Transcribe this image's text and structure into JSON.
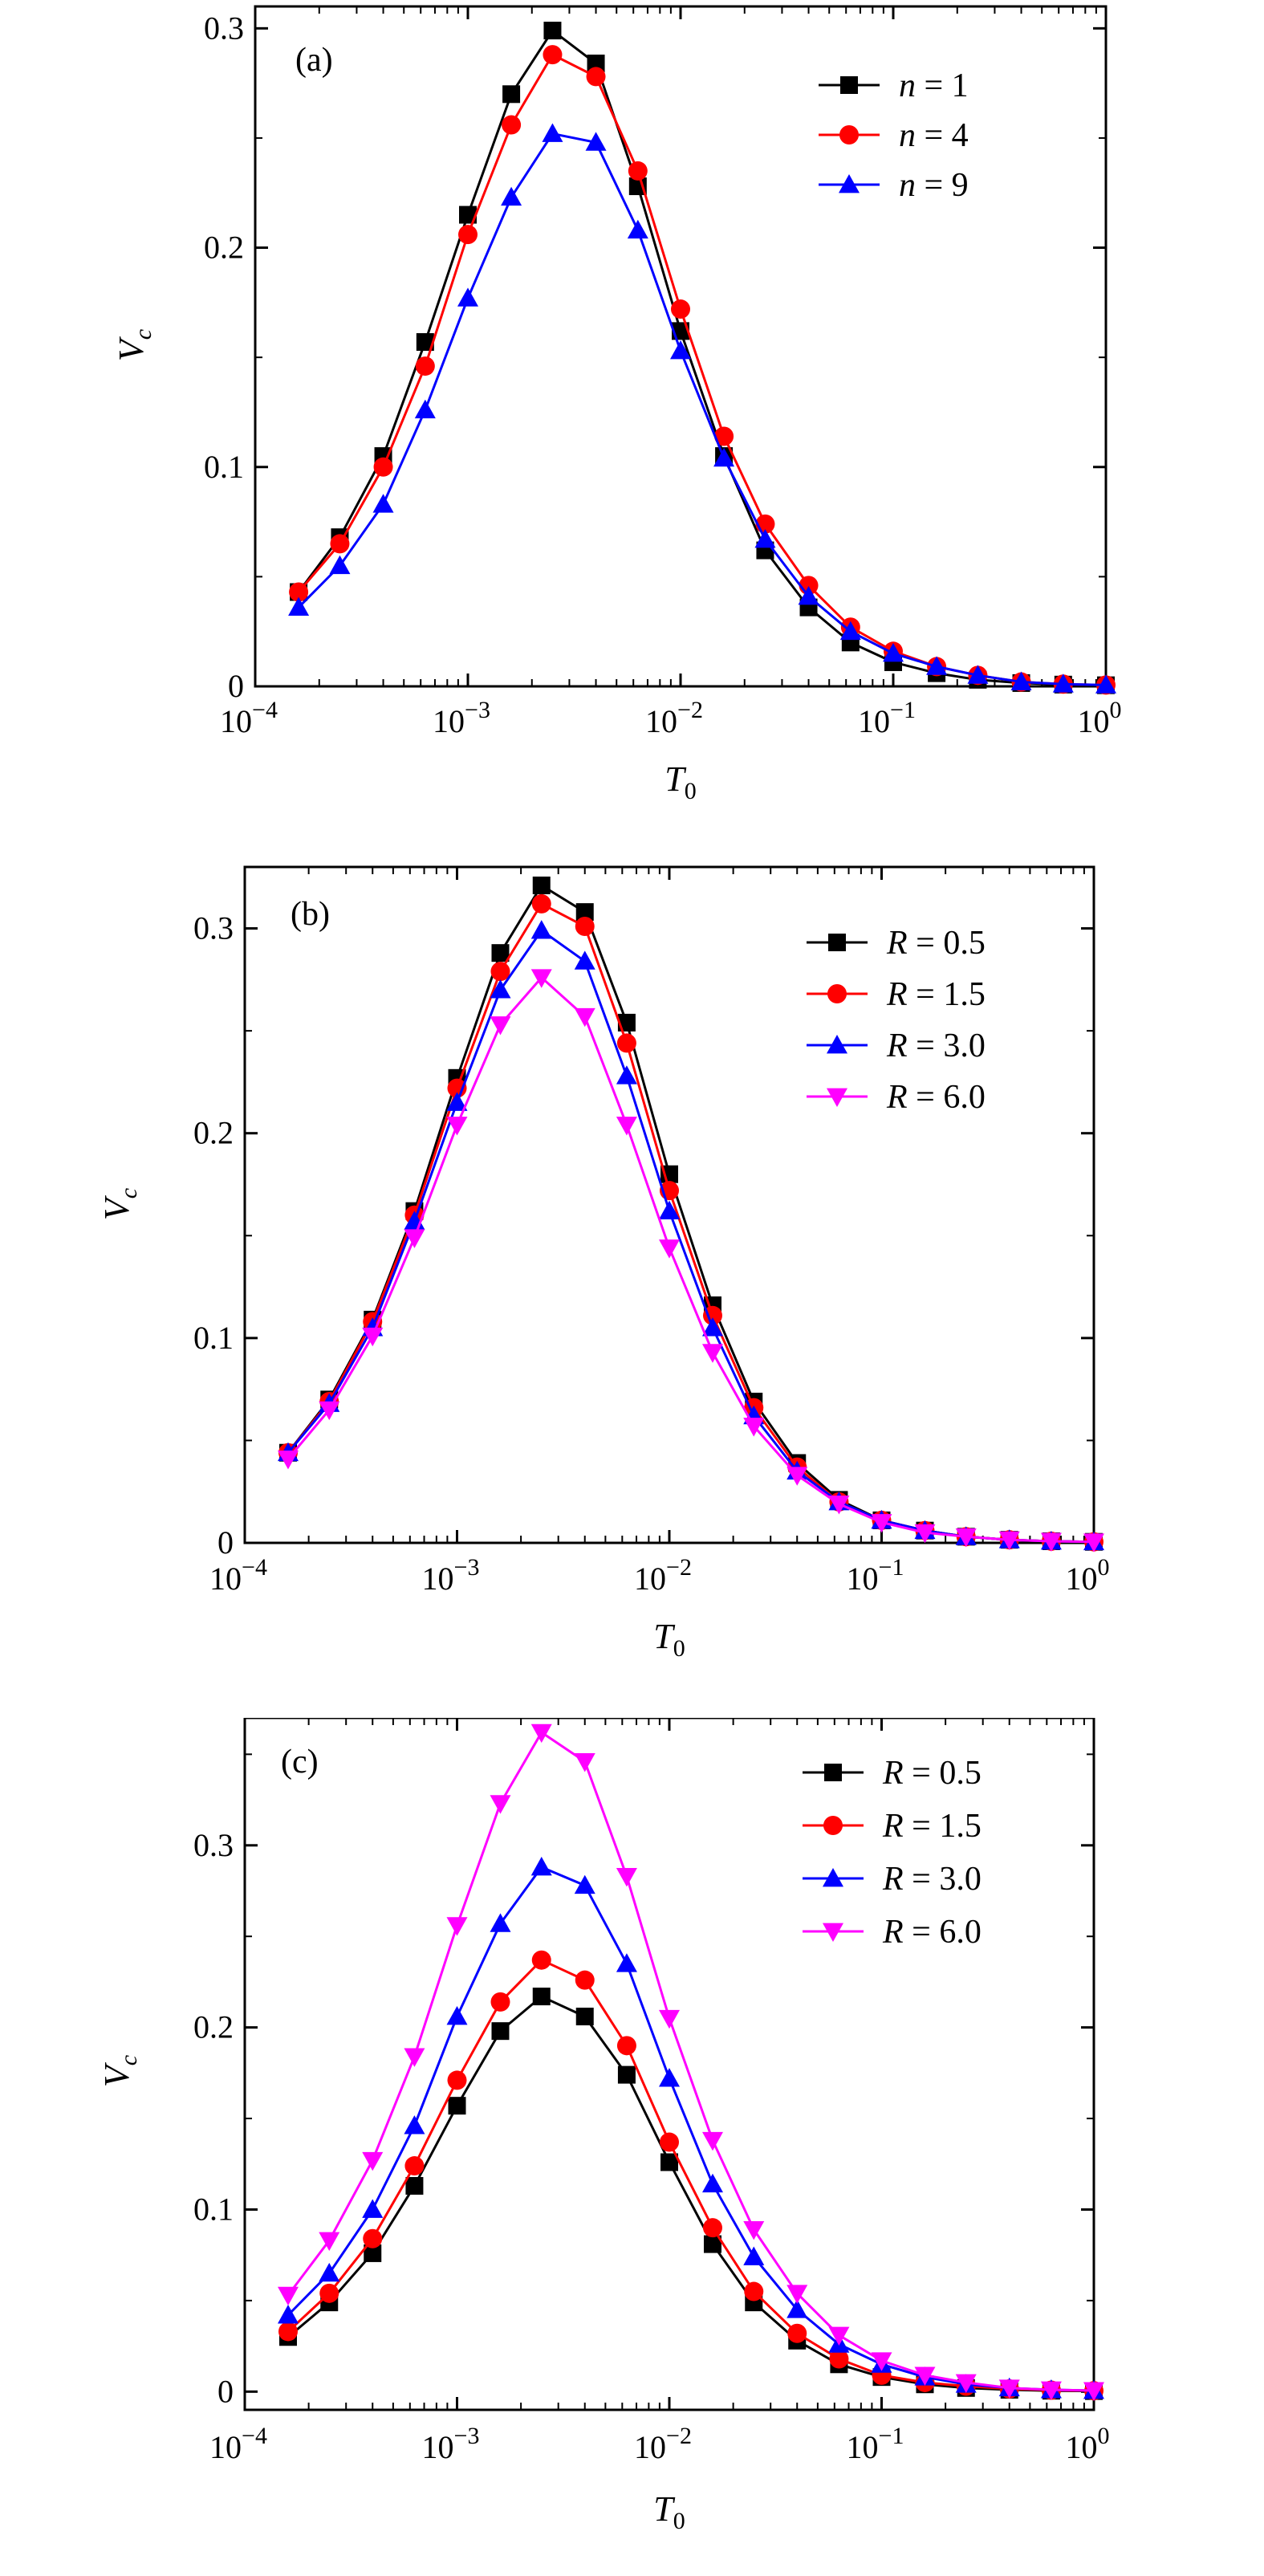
{
  "chart_data": [
    {
      "type": "line",
      "panel_label": "(a)",
      "xlabel": "T",
      "xlabel_sub": "0",
      "ylabel": "V",
      "ylabel_sub": "c",
      "xscale": "log",
      "xlim": [
        0.0001,
        1
      ],
      "ylim": [
        0,
        0.31
      ],
      "x_ticks": [
        0.0001,
        0.001,
        0.01,
        0.1,
        1
      ],
      "x_tick_labels": [
        {
          "base": "10",
          "exp": "−4"
        },
        {
          "base": "10",
          "exp": "−3"
        },
        {
          "base": "10",
          "exp": "−2"
        },
        {
          "base": "10",
          "exp": "−1"
        },
        {
          "base": "10",
          "exp": "0"
        }
      ],
      "y_ticks": [
        0,
        0.1,
        0.2,
        0.3
      ],
      "y_tick_labels": [
        "0",
        "0.1",
        "0.2",
        "0.3"
      ],
      "legend_position": "top-right",
      "x": [
        0.00016,
        0.00025,
        0.0004,
        0.00063,
        0.001,
        0.0016,
        0.0025,
        0.004,
        0.0063,
        0.01,
        0.016,
        0.025,
        0.04,
        0.063,
        0.1,
        0.16,
        0.25,
        0.4,
        0.63,
        1.0
      ],
      "series": [
        {
          "name": "n = 1",
          "legend_var": "n",
          "legend_val": "= 1",
          "color": "#000000",
          "marker": "square",
          "values": [
            0.043,
            0.068,
            0.105,
            0.157,
            0.215,
            0.27,
            0.299,
            0.284,
            0.228,
            0.162,
            0.105,
            0.062,
            0.036,
            0.02,
            0.011,
            0.006,
            0.003,
            0.0015,
            0.0008,
            0.0005
          ]
        },
        {
          "name": "n = 4",
          "legend_var": "n",
          "legend_val": "= 4",
          "color": "#ff0000",
          "marker": "circle",
          "values": [
            0.043,
            0.065,
            0.1,
            0.146,
            0.206,
            0.256,
            0.288,
            0.278,
            0.235,
            0.172,
            0.114,
            0.074,
            0.046,
            0.027,
            0.016,
            0.009,
            0.005,
            0.002,
            0.001,
            0.0006
          ]
        },
        {
          "name": "n = 9",
          "legend_var": "n",
          "legend_val": "= 9",
          "color": "#0000ff",
          "marker": "triangle-up",
          "values": [
            0.036,
            0.055,
            0.083,
            0.126,
            0.177,
            0.223,
            0.252,
            0.248,
            0.208,
            0.153,
            0.104,
            0.067,
            0.041,
            0.025,
            0.015,
            0.009,
            0.005,
            0.002,
            0.001,
            0.0006
          ]
        }
      ]
    },
    {
      "type": "line",
      "panel_label": "(b)",
      "xlabel": "T",
      "xlabel_sub": "0",
      "ylabel": "V",
      "ylabel_sub": "c",
      "xscale": "log",
      "xlim": [
        0.0001,
        1
      ],
      "ylim": [
        0,
        0.33
      ],
      "x_ticks": [
        0.0001,
        0.001,
        0.01,
        0.1,
        1
      ],
      "x_tick_labels": [
        {
          "base": "10",
          "exp": "−4"
        },
        {
          "base": "10",
          "exp": "−3"
        },
        {
          "base": "10",
          "exp": "−2"
        },
        {
          "base": "10",
          "exp": "−1"
        },
        {
          "base": "10",
          "exp": "0"
        }
      ],
      "y_ticks": [
        0,
        0.1,
        0.2,
        0.3
      ],
      "y_tick_labels": [
        "0",
        "0.1",
        "0.2",
        "0.3"
      ],
      "legend_position": "top-right",
      "x": [
        0.00016,
        0.00025,
        0.0004,
        0.00063,
        0.001,
        0.0016,
        0.0025,
        0.004,
        0.0063,
        0.01,
        0.016,
        0.025,
        0.04,
        0.063,
        0.1,
        0.16,
        0.25,
        0.4,
        0.63,
        1.0
      ],
      "series": [
        {
          "name": "R = 0.5",
          "legend_var": "R",
          "legend_val": "= 0.5",
          "color": "#000000",
          "marker": "square",
          "values": [
            0.044,
            0.07,
            0.109,
            0.162,
            0.227,
            0.288,
            0.321,
            0.308,
            0.254,
            0.18,
            0.116,
            0.069,
            0.039,
            0.021,
            0.011,
            0.006,
            0.003,
            0.0015,
            0.0008,
            0.0005
          ]
        },
        {
          "name": "R = 1.5",
          "legend_var": "R",
          "legend_val": "= 1.5",
          "color": "#ff0000",
          "marker": "circle",
          "values": [
            0.044,
            0.069,
            0.108,
            0.16,
            0.222,
            0.279,
            0.312,
            0.301,
            0.244,
            0.172,
            0.111,
            0.066,
            0.037,
            0.02,
            0.011,
            0.006,
            0.003,
            0.0015,
            0.0008,
            0.0005
          ]
        },
        {
          "name": "R = 3.0",
          "legend_var": "R",
          "legend_val": "= 3.0",
          "color": "#0000ff",
          "marker": "triangle-up",
          "values": [
            0.044,
            0.068,
            0.105,
            0.157,
            0.215,
            0.27,
            0.299,
            0.284,
            0.228,
            0.162,
            0.105,
            0.062,
            0.035,
            0.02,
            0.011,
            0.006,
            0.003,
            0.0015,
            0.0008,
            0.0005
          ]
        },
        {
          "name": "R = 6.0",
          "legend_var": "R",
          "legend_val": "= 6.0",
          "color": "#ff00ff",
          "marker": "triangle-down",
          "values": [
            0.041,
            0.065,
            0.101,
            0.149,
            0.204,
            0.253,
            0.276,
            0.257,
            0.204,
            0.144,
            0.093,
            0.057,
            0.033,
            0.019,
            0.01,
            0.005,
            0.003,
            0.0015,
            0.0008,
            0.0005
          ]
        }
      ]
    },
    {
      "type": "line",
      "panel_label": "(c)",
      "xlabel": "T",
      "xlabel_sub": "0",
      "ylabel": "V",
      "ylabel_sub": "c",
      "xscale": "log",
      "xlim": [
        0.0001,
        1
      ],
      "ylim": [
        -0.01,
        0.37
      ],
      "x_ticks": [
        0.0001,
        0.001,
        0.01,
        0.1,
        1
      ],
      "x_tick_labels": [
        {
          "base": "10",
          "exp": "−4"
        },
        {
          "base": "10",
          "exp": "−3"
        },
        {
          "base": "10",
          "exp": "−2"
        },
        {
          "base": "10",
          "exp": "−1"
        },
        {
          "base": "10",
          "exp": "0"
        }
      ],
      "y_ticks": [
        0,
        0.1,
        0.2,
        0.3
      ],
      "y_tick_labels": [
        "0",
        "0.1",
        "0.2",
        "0.3"
      ],
      "legend_position": "top-right",
      "x": [
        0.00016,
        0.00025,
        0.0004,
        0.00063,
        0.001,
        0.0016,
        0.0025,
        0.004,
        0.0063,
        0.01,
        0.016,
        0.025,
        0.04,
        0.063,
        0.1,
        0.16,
        0.25,
        0.4,
        0.63,
        1.0
      ],
      "series": [
        {
          "name": "R = 0.5",
          "legend_var": "R",
          "legend_val": "= 0.5",
          "color": "#000000",
          "marker": "square",
          "values": [
            0.03,
            0.049,
            0.076,
            0.113,
            0.157,
            0.198,
            0.217,
            0.206,
            0.174,
            0.126,
            0.081,
            0.049,
            0.028,
            0.015,
            0.008,
            0.004,
            0.002,
            0.001,
            0.0005,
            0.0003
          ]
        },
        {
          "name": "R = 1.5",
          "legend_var": "R",
          "legend_val": "= 1.5",
          "color": "#ff0000",
          "marker": "circle",
          "values": [
            0.033,
            0.054,
            0.084,
            0.124,
            0.171,
            0.214,
            0.237,
            0.226,
            0.19,
            0.137,
            0.09,
            0.055,
            0.032,
            0.018,
            0.009,
            0.005,
            0.003,
            0.0015,
            0.0008,
            0.0005
          ]
        },
        {
          "name": "R = 3.0",
          "legend_var": "R",
          "legend_val": "= 3.0",
          "color": "#0000ff",
          "marker": "triangle-up",
          "values": [
            0.042,
            0.065,
            0.1,
            0.146,
            0.206,
            0.257,
            0.288,
            0.278,
            0.235,
            0.172,
            0.114,
            0.074,
            0.045,
            0.026,
            0.015,
            0.008,
            0.004,
            0.002,
            0.001,
            0.0006
          ]
        },
        {
          "name": "R = 6.0",
          "legend_var": "R",
          "legend_val": "= 6.0",
          "color": "#ff00ff",
          "marker": "triangle-down",
          "values": [
            0.053,
            0.083,
            0.127,
            0.184,
            0.256,
            0.323,
            0.362,
            0.346,
            0.283,
            0.205,
            0.138,
            0.089,
            0.054,
            0.031,
            0.017,
            0.009,
            0.005,
            0.002,
            0.001,
            0.0006
          ]
        }
      ]
    }
  ]
}
